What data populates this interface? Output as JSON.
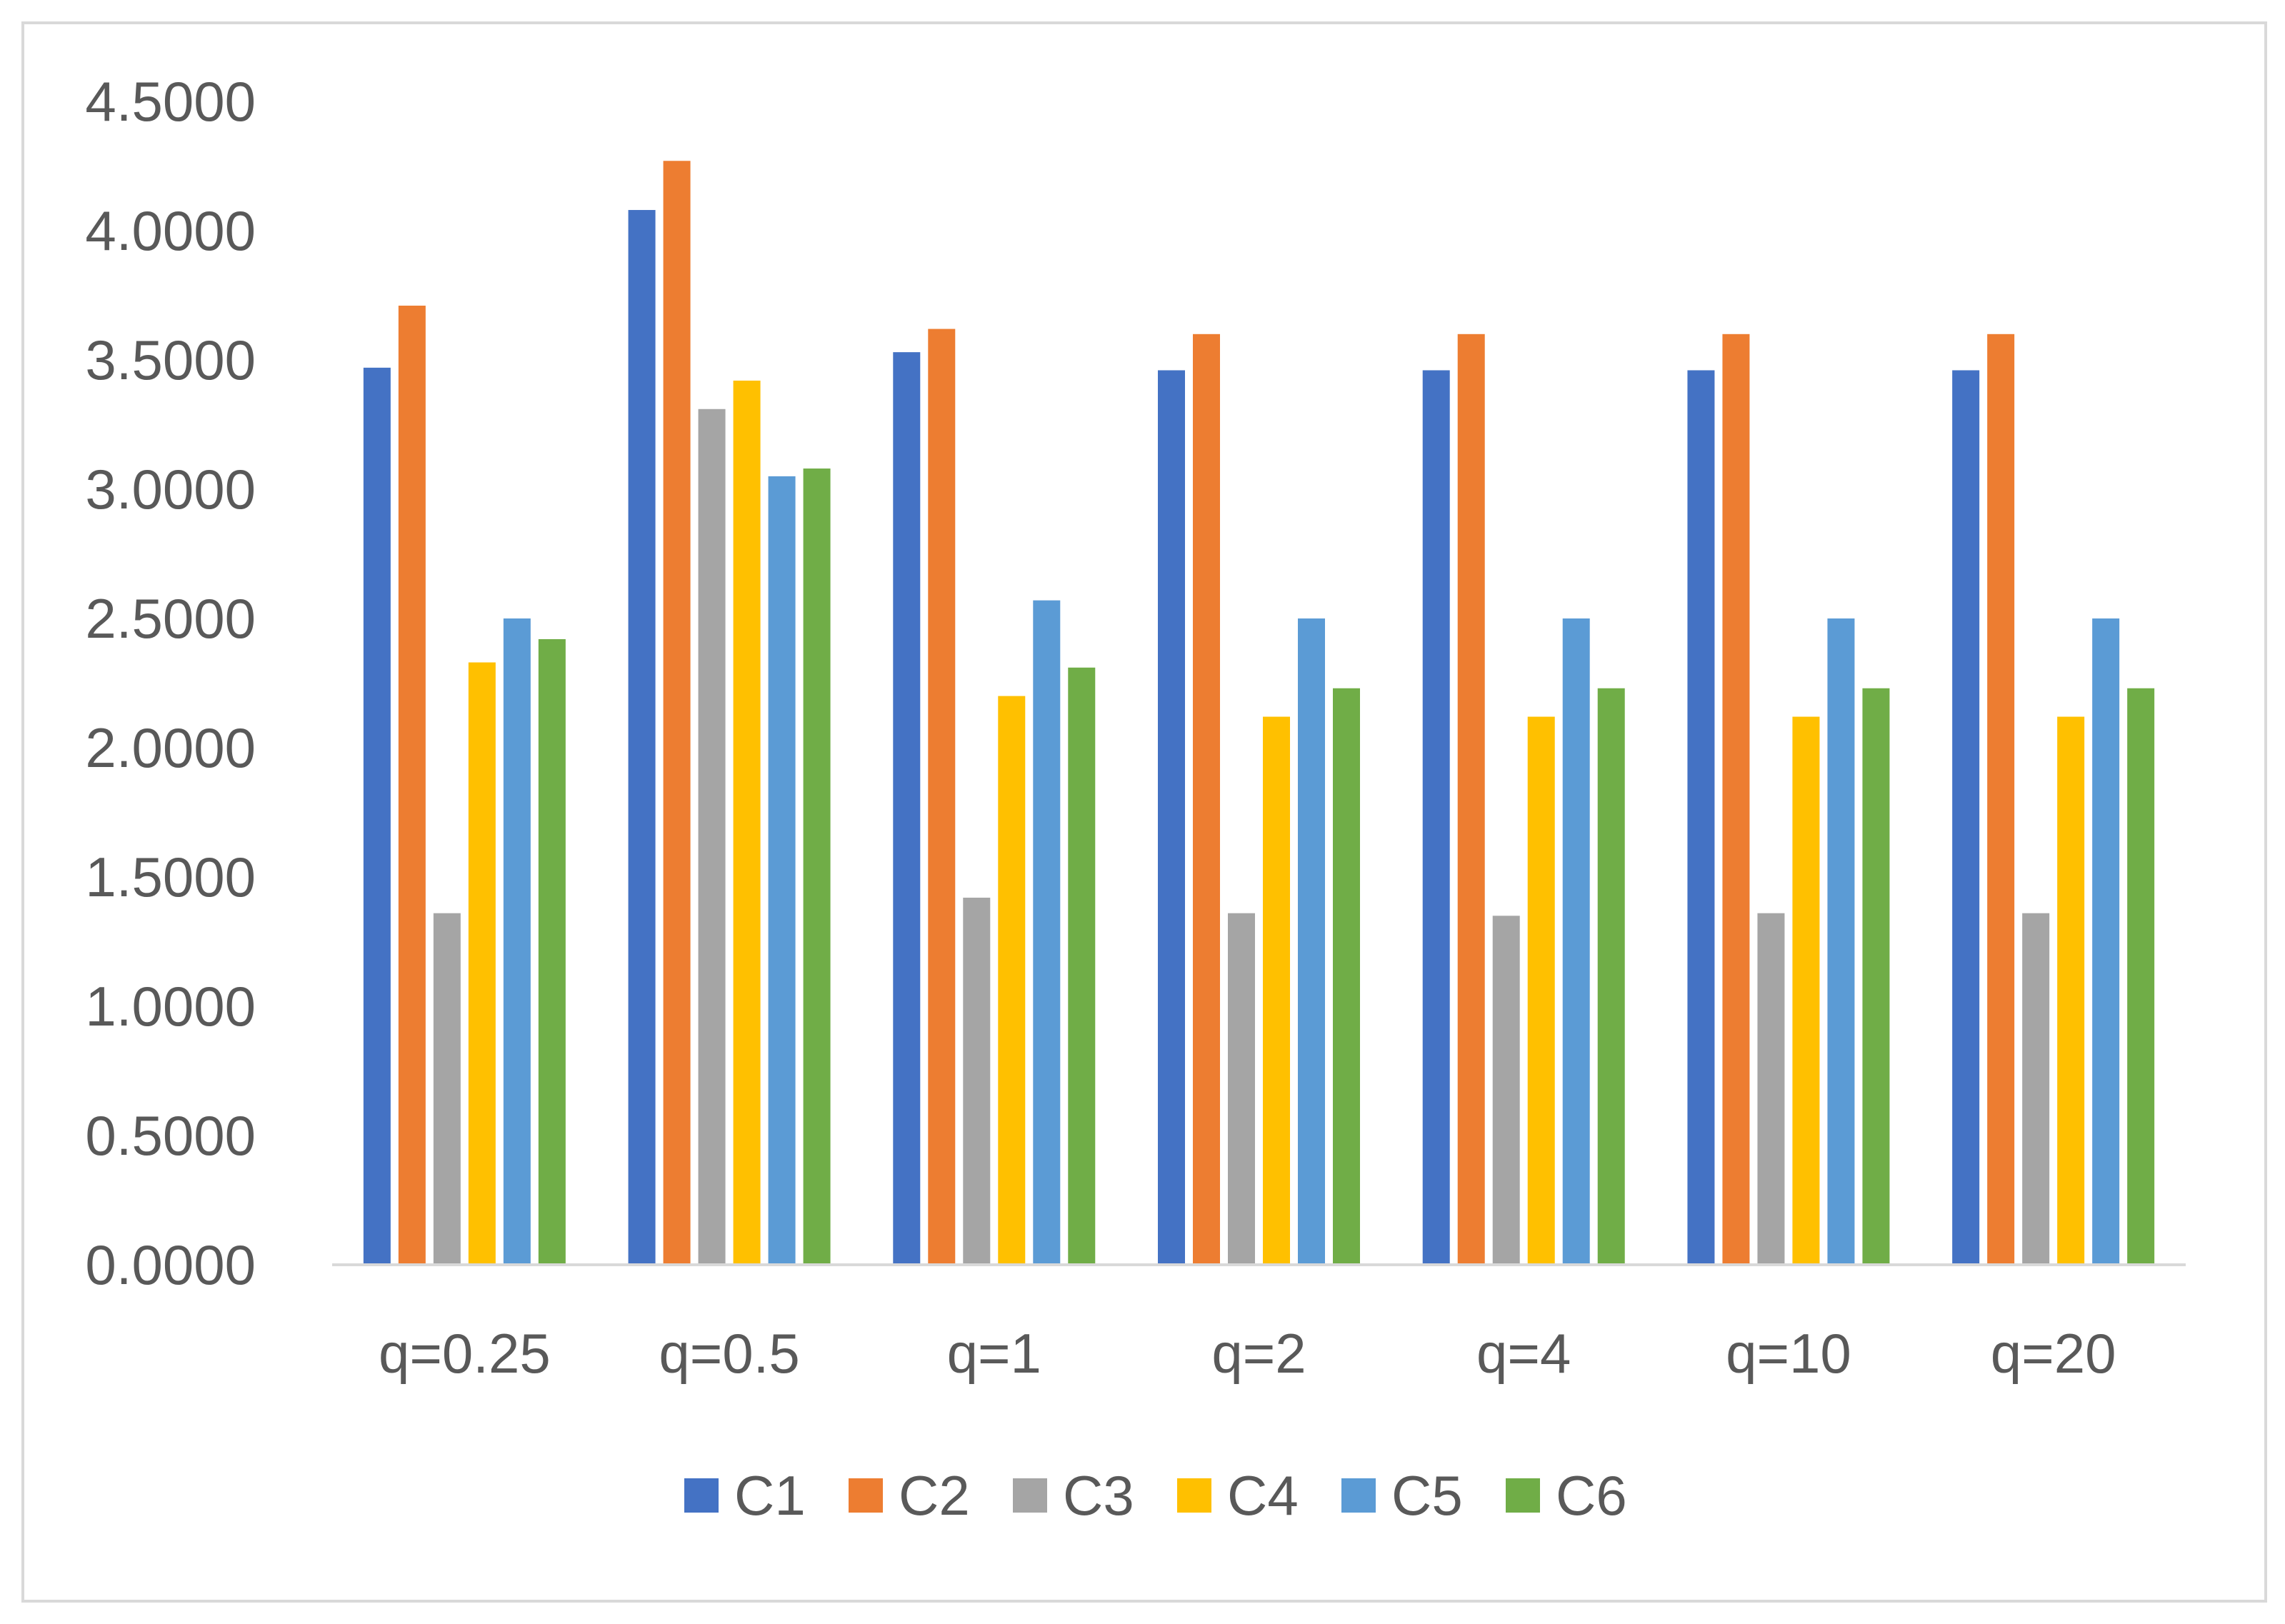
{
  "chart_data": {
    "type": "bar",
    "title": "",
    "xlabel": "",
    "ylabel": "",
    "categories": [
      "q=0.25",
      "q=0.5",
      "q=1",
      "q=2",
      "q=4",
      "q=10",
      "q=20"
    ],
    "ylim": [
      0,
      4.5
    ],
    "y_ticks": [
      "0.0000",
      "0.5000",
      "1.0000",
      "1.5000",
      "2.0000",
      "2.5000",
      "3.0000",
      "3.5000",
      "4.0000",
      "4.5000"
    ],
    "grid": false,
    "legend_position": "bottom",
    "series": [
      {
        "name": "C1",
        "color": "#4472C4",
        "values": [
          3.47,
          4.08,
          3.53,
          3.46,
          3.46,
          3.46,
          3.46
        ]
      },
      {
        "name": "C2",
        "color": "#ED7D31",
        "values": [
          3.71,
          4.27,
          3.62,
          3.6,
          3.6,
          3.6,
          3.6
        ]
      },
      {
        "name": "C3",
        "color": "#A5A5A5",
        "values": [
          1.36,
          3.31,
          1.42,
          1.36,
          1.35,
          1.36,
          1.36
        ]
      },
      {
        "name": "C4",
        "color": "#FFC000",
        "values": [
          2.33,
          3.42,
          2.2,
          2.12,
          2.12,
          2.12,
          2.12
        ]
      },
      {
        "name": "C5",
        "color": "#5B9BD5",
        "values": [
          2.5,
          3.05,
          2.57,
          2.5,
          2.5,
          2.5,
          2.5
        ]
      },
      {
        "name": "C6",
        "color": "#70AD47",
        "values": [
          2.42,
          3.08,
          2.31,
          2.23,
          2.23,
          2.23,
          2.23
        ]
      }
    ]
  }
}
